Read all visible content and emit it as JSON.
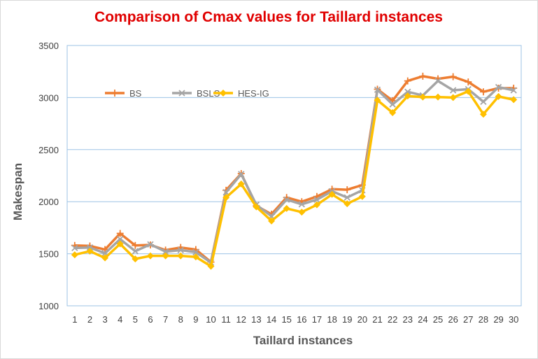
{
  "chart_data": {
    "type": "line",
    "title": "Comparison of Cmax values for Taillard instances",
    "xlabel": "Taillard instances",
    "ylabel": "Makespan",
    "x": [
      1,
      2,
      3,
      4,
      5,
      6,
      7,
      8,
      9,
      10,
      11,
      12,
      13,
      14,
      15,
      16,
      17,
      18,
      19,
      20,
      21,
      22,
      23,
      24,
      25,
      26,
      27,
      28,
      29,
      30
    ],
    "ylim": [
      1000,
      3500
    ],
    "yticks": [
      1000,
      1500,
      2000,
      2500,
      3000,
      3500
    ],
    "grid": "horizontal",
    "legend_position": "upper-left",
    "series": [
      {
        "name": "BS",
        "color": "#ed7d31",
        "marker": "plus",
        "values": [
          1580,
          1575,
          1540,
          1695,
          1580,
          1585,
          1535,
          1560,
          1540,
          1420,
          2110,
          2270,
          1960,
          1880,
          2040,
          2000,
          2050,
          2120,
          2115,
          2160,
          3080,
          2970,
          3160,
          3205,
          3180,
          3200,
          3150,
          3055,
          3090,
          3090
        ]
      },
      {
        "name": "BSLS",
        "color": "#a5a5a5",
        "marker": "x",
        "values": [
          1555,
          1560,
          1505,
          1640,
          1525,
          1590,
          1520,
          1535,
          1515,
          1415,
          2090,
          2265,
          1970,
          1860,
          2020,
          1975,
          2020,
          2100,
          2040,
          2110,
          3075,
          2935,
          3055,
          3020,
          3160,
          3070,
          3080,
          2960,
          3100,
          3070
        ]
      },
      {
        "name": "HES-IG",
        "color": "#ffc000",
        "marker": "diamond",
        "values": [
          1490,
          1525,
          1460,
          1595,
          1450,
          1480,
          1480,
          1480,
          1470,
          1380,
          2040,
          2170,
          1950,
          1815,
          1935,
          1900,
          1970,
          2070,
          1980,
          2050,
          2975,
          2855,
          3015,
          3005,
          3005,
          3000,
          3060,
          2840,
          3010,
          2980
        ]
      }
    ]
  }
}
